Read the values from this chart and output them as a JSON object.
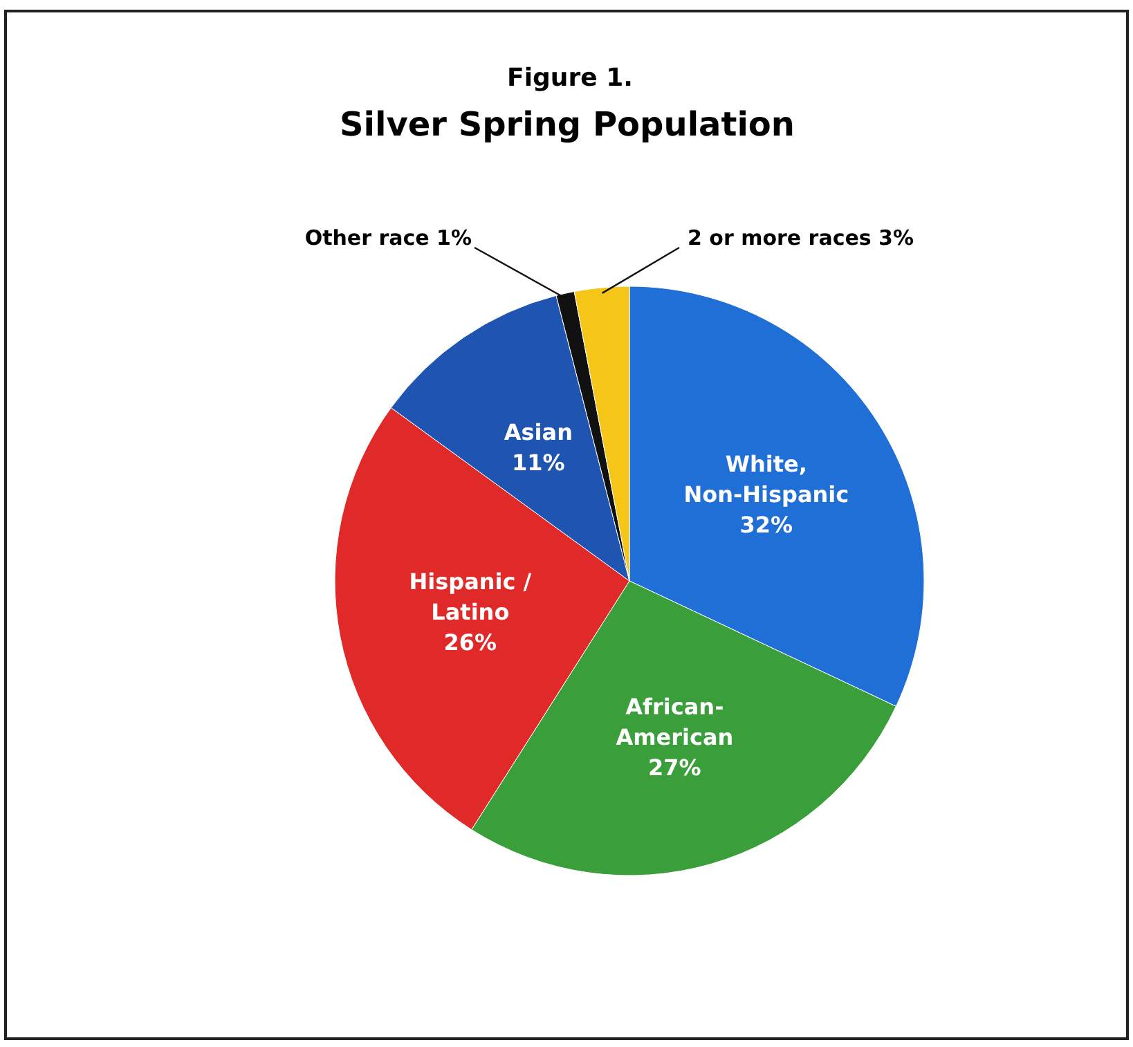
{
  "chart_data": {
    "type": "pie",
    "subtitle": "Figure 1.",
    "title": "Silver Spring Population",
    "categories": [
      "White, Non-Hispanic",
      "African-American",
      "Hispanic / Latino",
      "Asian",
      "Other race",
      "2 or more races"
    ],
    "values": [
      32,
      27,
      26,
      11,
      1,
      3
    ],
    "colors": [
      "#1f6fd6",
      "#3a9e3a",
      "#e02a2a",
      "#1f55b0",
      "#111111",
      "#f5c518"
    ],
    "value_labels": [
      "32%",
      "27%",
      "26%",
      "11%",
      "1%",
      "3%"
    ]
  }
}
